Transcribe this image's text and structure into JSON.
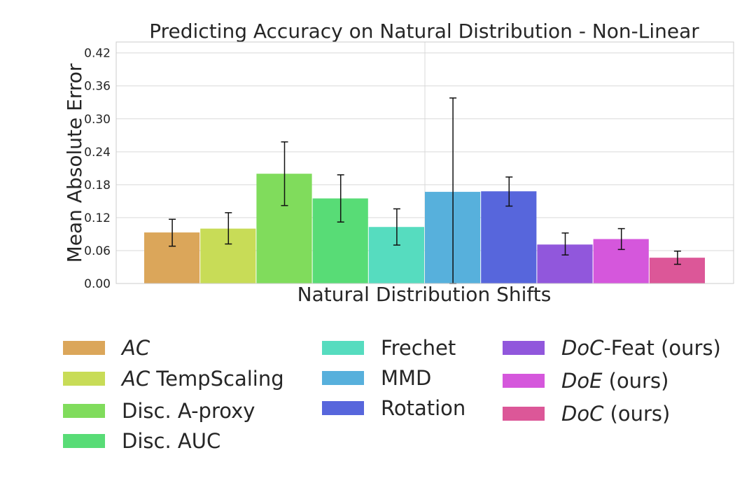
{
  "chart_data": {
    "type": "bar",
    "title": "Predicting Accuracy on Natural Distribution - Non-Linear",
    "xlabel": "Natural Distribution Shifts",
    "ylabel": "Mean Absolute Error",
    "ylim": [
      0,
      0.44
    ],
    "yticks": [
      "0.00",
      "0.06",
      "0.12",
      "0.18",
      "0.24",
      "0.30",
      "0.36",
      "0.42"
    ],
    "grid": true,
    "legend_position": "bottom",
    "series": [
      {
        "name": "AC",
        "value": 0.093,
        "err_low": 0.068,
        "err_high": 0.117,
        "color": "#dba65a",
        "italic_prefix": "AC",
        "suffix": ""
      },
      {
        "name": "AC TempScaling",
        "value": 0.1,
        "err_low": 0.072,
        "err_high": 0.129,
        "color": "#c8dc57",
        "italic_prefix": "AC",
        "suffix": " TempScaling"
      },
      {
        "name": "Disc. A-proxy",
        "value": 0.2,
        "err_low": 0.142,
        "err_high": 0.258,
        "color": "#80dc5c",
        "italic_prefix": "",
        "suffix": "Disc. A-proxy"
      },
      {
        "name": "Disc. AUC",
        "value": 0.155,
        "err_low": 0.112,
        "err_high": 0.198,
        "color": "#58dc76",
        "italic_prefix": "",
        "suffix": "Disc. AUC"
      },
      {
        "name": "Frechet",
        "value": 0.103,
        "err_low": 0.07,
        "err_high": 0.136,
        "color": "#56dcbf",
        "italic_prefix": "",
        "suffix": "Frechet"
      },
      {
        "name": "MMD",
        "value": 0.167,
        "err_low": 0.0,
        "err_high": 0.338,
        "color": "#57b0dc",
        "italic_prefix": "",
        "suffix": "MMD"
      },
      {
        "name": "Rotation",
        "value": 0.168,
        "err_low": 0.141,
        "err_high": 0.194,
        "color": "#5766dc",
        "italic_prefix": "",
        "suffix": "Rotation"
      },
      {
        "name": "DoC-Feat (ours)",
        "value": 0.071,
        "err_low": 0.052,
        "err_high": 0.092,
        "color": "#9157dc",
        "italic_prefix": "DoC",
        "suffix": "-Feat (ours)"
      },
      {
        "name": "DoE (ours)",
        "value": 0.081,
        "err_low": 0.062,
        "err_high": 0.1,
        "color": "#d557dc",
        "italic_prefix": "DoE",
        "suffix": " (ours)"
      },
      {
        "name": "DoC (ours)",
        "value": 0.047,
        "err_low": 0.035,
        "err_high": 0.059,
        "color": "#dc5798",
        "italic_prefix": "DoC",
        "suffix": " (ours)"
      }
    ]
  }
}
